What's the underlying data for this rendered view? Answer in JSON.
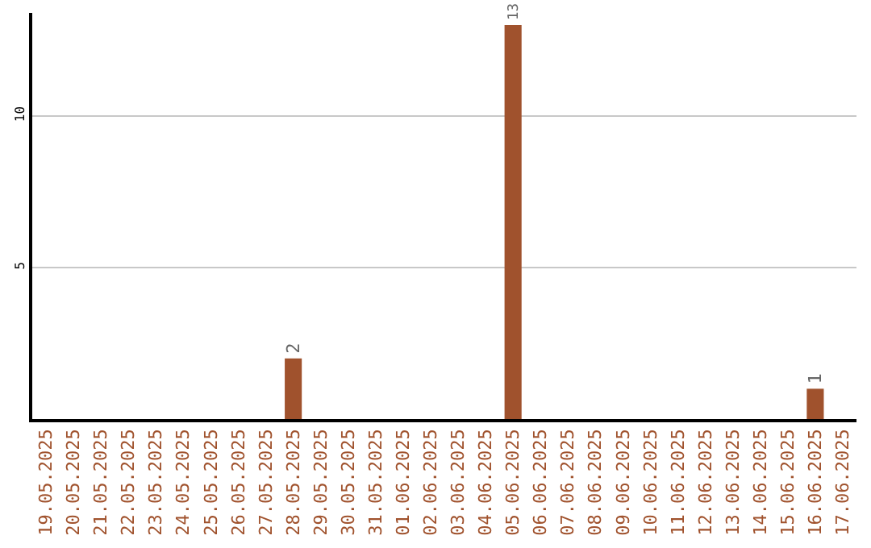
{
  "chart_data": {
    "type": "bar",
    "categories": [
      "19.05.2025",
      "20.05.2025",
      "21.05.2025",
      "22.05.2025",
      "23.05.2025",
      "24.05.2025",
      "25.05.2025",
      "26.05.2025",
      "27.05.2025",
      "28.05.2025",
      "29.05.2025",
      "30.05.2025",
      "31.05.2025",
      "01.06.2025",
      "02.06.2025",
      "03.06.2025",
      "04.06.2025",
      "05.06.2025",
      "06.06.2025",
      "07.06.2025",
      "08.06.2025",
      "09.06.2025",
      "10.06.2025",
      "11.06.2025",
      "12.06.2025",
      "13.06.2025",
      "14.06.2025",
      "15.06.2025",
      "16.06.2025",
      "17.06.2025"
    ],
    "series": [
      {
        "color": "#a0522d",
        "values": [
          0,
          0,
          0,
          0,
          0,
          0,
          0,
          0,
          0,
          2,
          0,
          0,
          0,
          0,
          0,
          0,
          0,
          13,
          0,
          0,
          0,
          0,
          0,
          0,
          0,
          0,
          0,
          0,
          1,
          0
        ],
        "value_labels": [
          null,
          null,
          null,
          null,
          null,
          null,
          null,
          null,
          null,
          "2",
          null,
          null,
          null,
          null,
          null,
          null,
          null,
          "13",
          null,
          null,
          null,
          null,
          null,
          null,
          null,
          null,
          null,
          null,
          "1",
          null
        ]
      }
    ],
    "ylim": [
      0,
      13.4
    ],
    "yticks": [
      5,
      10
    ],
    "grid": "y",
    "legend": false
  }
}
